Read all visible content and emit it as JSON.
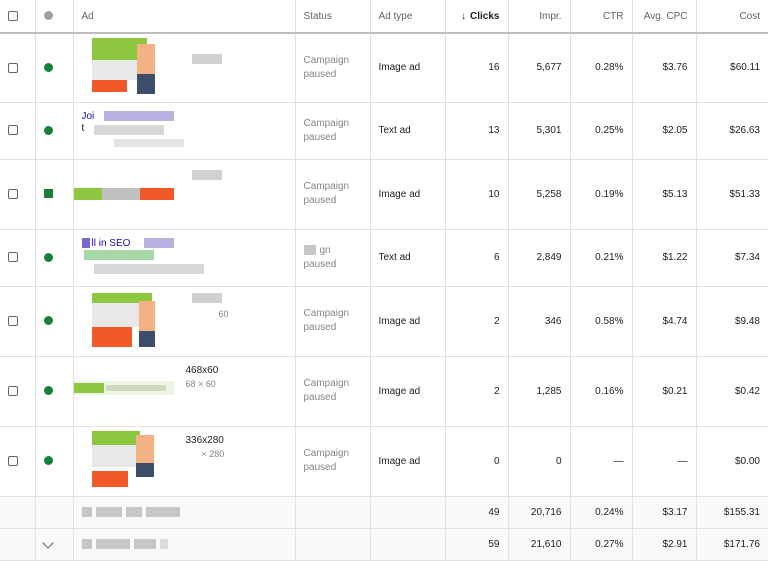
{
  "header": {
    "ad": "Ad",
    "status": "Status",
    "ad_type": "Ad type",
    "clicks": "Clicks",
    "sort_arrow": "↓",
    "impr": "Impr.",
    "ctr": "CTR",
    "avg_cpc": "Avg. CPC",
    "cost": "Cost"
  },
  "rows": [
    {
      "status": "Campaign paused",
      "type": "Image ad",
      "clicks": "16",
      "impr": "5,677",
      "ctr": "0.28%",
      "cpc": "$3.76",
      "cost": "$60.11"
    },
    {
      "status": "Campaign paused",
      "type": "Text ad",
      "clicks": "13",
      "impr": "5,301",
      "ctr": "0.25%",
      "cpc": "$2.05",
      "cost": "$26.63",
      "ad_title": "Joi",
      "ad_line": "t"
    },
    {
      "status": "Campaign paused",
      "type": "Image ad",
      "clicks": "10",
      "impr": "5,258",
      "ctr": "0.19%",
      "cpc": "$5.13",
      "cost": "$51.33"
    },
    {
      "status": "gn paused",
      "type": "Text ad",
      "clicks": "6",
      "impr": "2,849",
      "ctr": "0.21%",
      "cpc": "$1.22",
      "cost": "$7.34",
      "ad_title": "ll in SEO"
    },
    {
      "status": "Campaign paused",
      "type": "Image ad",
      "clicks": "2",
      "impr": "346",
      "ctr": "0.58%",
      "cpc": "$4.74",
      "cost": "$9.48",
      "ad_sub": "60"
    },
    {
      "status": "Campaign paused",
      "type": "Image ad",
      "clicks": "2",
      "impr": "1,285",
      "ctr": "0.16%",
      "cpc": "$0.21",
      "cost": "$0.42",
      "ad_label": "468x60",
      "ad_sub": "68 × 60"
    },
    {
      "status": "Campaign paused",
      "type": "Image ad",
      "clicks": "0",
      "impr": "0",
      "ctr": "—",
      "cpc": "—",
      "cost": "$0.00",
      "ad_label": "336x280",
      "ad_sub": "× 280"
    }
  ],
  "totals": [
    {
      "clicks": "49",
      "impr": "20,716",
      "ctr": "0.24%",
      "cpc": "$3.17",
      "cost": "$155.31"
    },
    {
      "clicks": "59",
      "impr": "21,610",
      "ctr": "0.27%",
      "cpc": "$2.91",
      "cost": "$171.76"
    }
  ],
  "colors": {
    "enabled": "#188038",
    "accent_orange": "#f05a28",
    "accent_green": "#8dc63f",
    "accent_purple": "#7b68c8"
  },
  "icons": {
    "checkbox": "checkbox-icon",
    "status": "status-dot-icon",
    "expand": "chevron-down-icon",
    "sort": "arrow-down-icon"
  }
}
